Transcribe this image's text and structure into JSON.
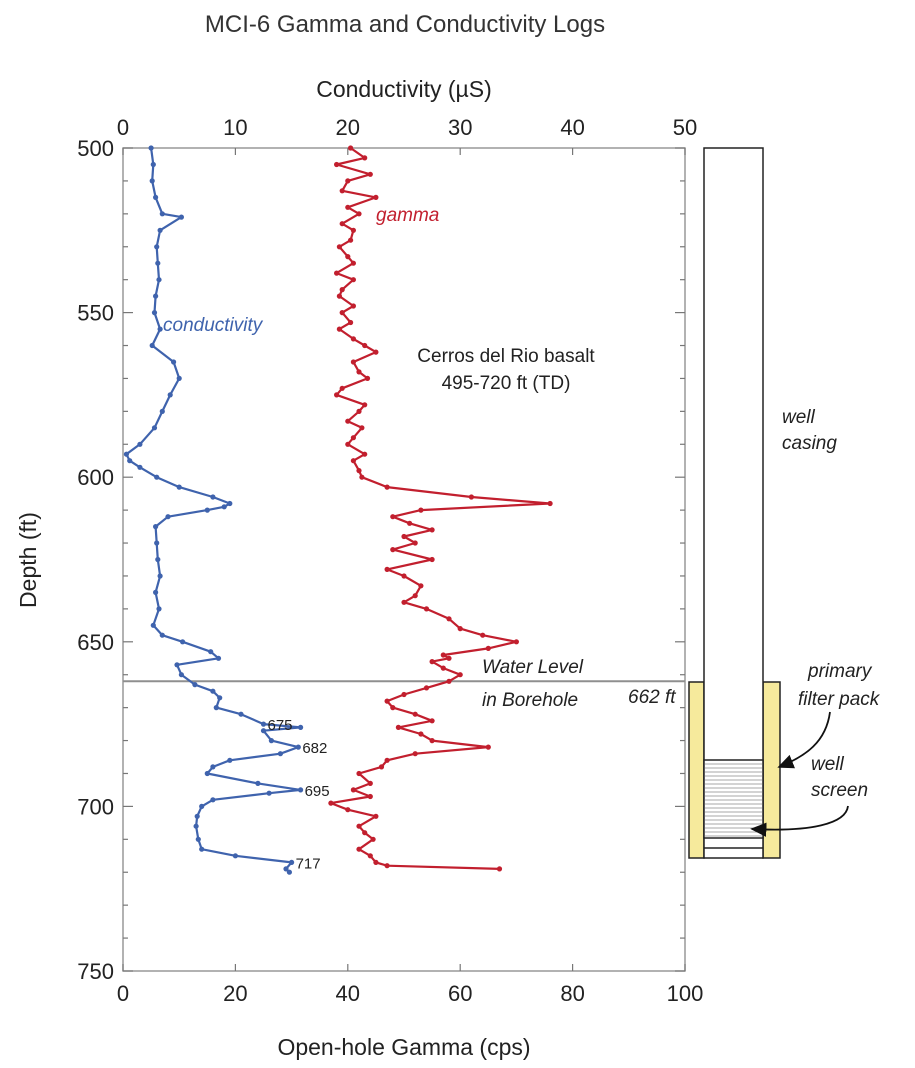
{
  "title": "MCI-6 Gamma and Conductivity Logs",
  "chart_data": {
    "type": "line",
    "title": "MCI-6 Gamma and Conductivity Logs",
    "top_xlabel": "Conductivity (µS)",
    "bottom_xlabel": "Open-hole Gamma (cps)",
    "ylabel": "Depth (ft)",
    "top_xlim": [
      0,
      50
    ],
    "bottom_xlim": [
      0,
      100
    ],
    "ylim": [
      500,
      750
    ],
    "y_inverted": true,
    "top_ticks": [
      "0",
      "10",
      "20",
      "30",
      "40",
      "50"
    ],
    "bottom_ticks": [
      "0",
      "20",
      "40",
      "60",
      "80",
      "100"
    ],
    "y_ticks": [
      "500",
      "550",
      "600",
      "650",
      "700",
      "750"
    ],
    "series": [
      {
        "name": "conductivity",
        "axis": "top",
        "color": "#3f63ad",
        "depth": [
          500,
          505,
          510,
          515,
          520,
          521,
          525,
          530,
          535,
          540,
          545,
          550,
          555,
          560,
          565,
          570,
          575,
          580,
          585,
          590,
          593,
          595,
          597,
          600,
          603,
          606,
          608,
          609,
          610,
          612,
          615,
          620,
          625,
          630,
          635,
          640,
          645,
          648,
          650,
          653,
          655,
          657,
          660,
          663,
          665,
          667,
          670,
          672,
          675,
          676,
          677,
          680,
          682,
          684,
          686,
          688,
          690,
          693,
          695,
          696,
          698,
          700,
          703,
          706,
          710,
          713,
          715,
          717,
          719,
          720
        ],
        "values": [
          2.5,
          2.7,
          2.6,
          2.9,
          3.5,
          5.2,
          3.3,
          3.0,
          3.1,
          3.2,
          2.9,
          2.8,
          3.3,
          2.6,
          4.5,
          5.0,
          4.2,
          3.5,
          2.8,
          1.5,
          0.3,
          0.6,
          1.5,
          3.0,
          5.0,
          8.0,
          9.5,
          9.0,
          7.5,
          4.0,
          2.9,
          3.0,
          3.1,
          3.3,
          2.9,
          3.2,
          2.7,
          3.5,
          5.3,
          7.8,
          8.5,
          4.8,
          5.2,
          6.4,
          8.0,
          8.6,
          8.3,
          10.5,
          12.5,
          15.8,
          12.5,
          13.2,
          15.6,
          14.0,
          9.5,
          8.0,
          7.5,
          12.0,
          15.8,
          13.0,
          8.0,
          7.0,
          6.6,
          6.5,
          6.7,
          7.0,
          10.0,
          15.0,
          14.5,
          14.8
        ]
      },
      {
        "name": "gamma",
        "axis": "bottom",
        "color": "#c21f2e",
        "depth": [
          500,
          503,
          505,
          508,
          510,
          513,
          515,
          518,
          520,
          523,
          525,
          528,
          530,
          533,
          535,
          538,
          540,
          543,
          545,
          548,
          550,
          553,
          555,
          558,
          560,
          562,
          565,
          568,
          570,
          573,
          575,
          578,
          580,
          583,
          585,
          588,
          590,
          593,
          595,
          598,
          600,
          603,
          606,
          608,
          610,
          612,
          614,
          616,
          618,
          620,
          622,
          625,
          628,
          630,
          633,
          636,
          638,
          640,
          643,
          646,
          648,
          650,
          652,
          654,
          655,
          656,
          658,
          660,
          662,
          664,
          666,
          668,
          670,
          672,
          674,
          676,
          678,
          680,
          682,
          684,
          686,
          688,
          690,
          693,
          695,
          697,
          699,
          701,
          703,
          706,
          708,
          710,
          713,
          715,
          717,
          718,
          719
        ],
        "values": [
          40.5,
          43,
          38,
          44,
          40,
          39,
          45,
          40,
          42,
          39,
          41,
          40.5,
          38.5,
          40,
          41,
          38,
          41,
          39,
          38.5,
          41,
          39,
          40.5,
          38.5,
          41,
          43,
          45,
          41,
          42,
          43.5,
          39,
          38,
          43,
          42,
          40,
          42.5,
          41,
          40,
          43,
          41,
          42,
          42.5,
          47,
          62,
          76,
          53,
          48,
          51,
          55,
          50,
          52,
          48,
          55,
          47,
          50,
          53,
          52,
          50,
          54,
          58,
          60,
          64,
          70,
          65,
          57,
          58,
          55,
          57,
          60,
          58,
          54,
          50,
          47,
          48,
          52,
          55,
          49,
          53,
          55,
          65,
          52,
          47,
          46,
          42,
          44,
          41,
          44,
          37,
          40,
          45,
          42,
          43,
          44.5,
          42,
          44,
          45,
          47,
          67
        ]
      }
    ],
    "depth_labels": [
      "675",
      "682",
      "695",
      "717"
    ],
    "water_level_depth": 662
  },
  "annotations": {
    "conductivity_label": "conductivity",
    "gamma_label": "gamma",
    "formation_line1": "Cerros del Rio basalt",
    "formation_line2": "495-720 ft (TD)",
    "water_line1": "Water Level",
    "water_line2": "in Borehole",
    "water_depth": "662 ft"
  },
  "well": {
    "casing_line1": "well",
    "casing_line2": "casing",
    "filter_line1": "primary",
    "filter_line2": "filter pack",
    "screen_line1": "well",
    "screen_line2": "screen",
    "filter_color": "#f6ea9c"
  }
}
